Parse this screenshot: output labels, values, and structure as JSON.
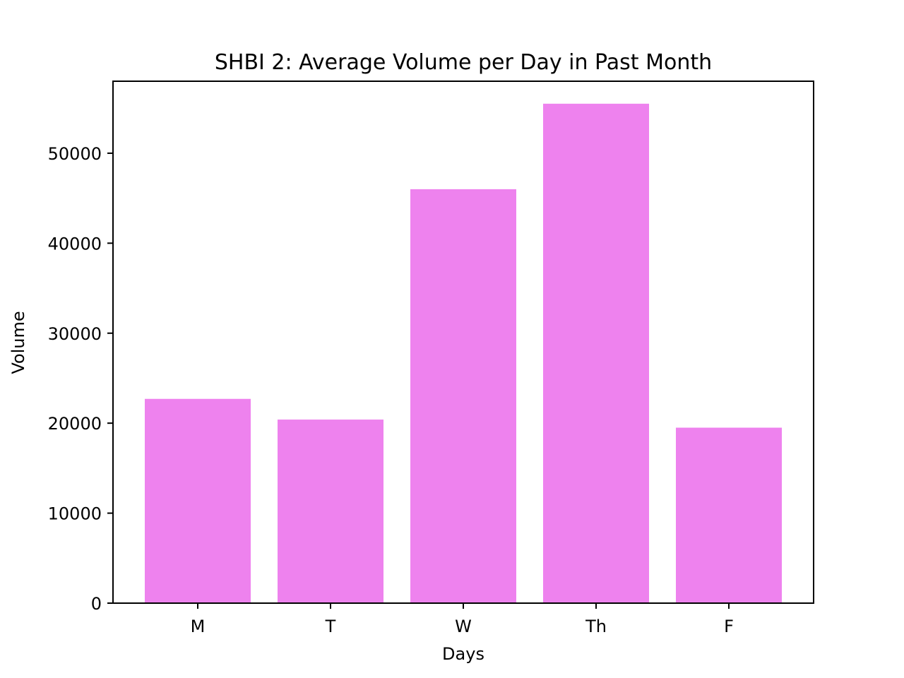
{
  "chart_data": {
    "type": "bar",
    "title": "SHBI 2: Average Volume per Day in Past Month",
    "xlabel": "Days",
    "ylabel": "Volume",
    "categories": [
      "M",
      "T",
      "W",
      "Th",
      "F"
    ],
    "values": [
      22700,
      20400,
      46000,
      55500,
      19500
    ],
    "ylim": [
      0,
      58000
    ],
    "yticks": [
      0,
      10000,
      20000,
      30000,
      40000,
      50000
    ],
    "ytick_labels": [
      "0",
      "10000",
      "20000",
      "30000",
      "40000",
      "50000"
    ],
    "grid": false,
    "legend": "none",
    "colors": {
      "bar": "#ee82ee",
      "axes": "#000000",
      "background": "#ffffff"
    }
  }
}
